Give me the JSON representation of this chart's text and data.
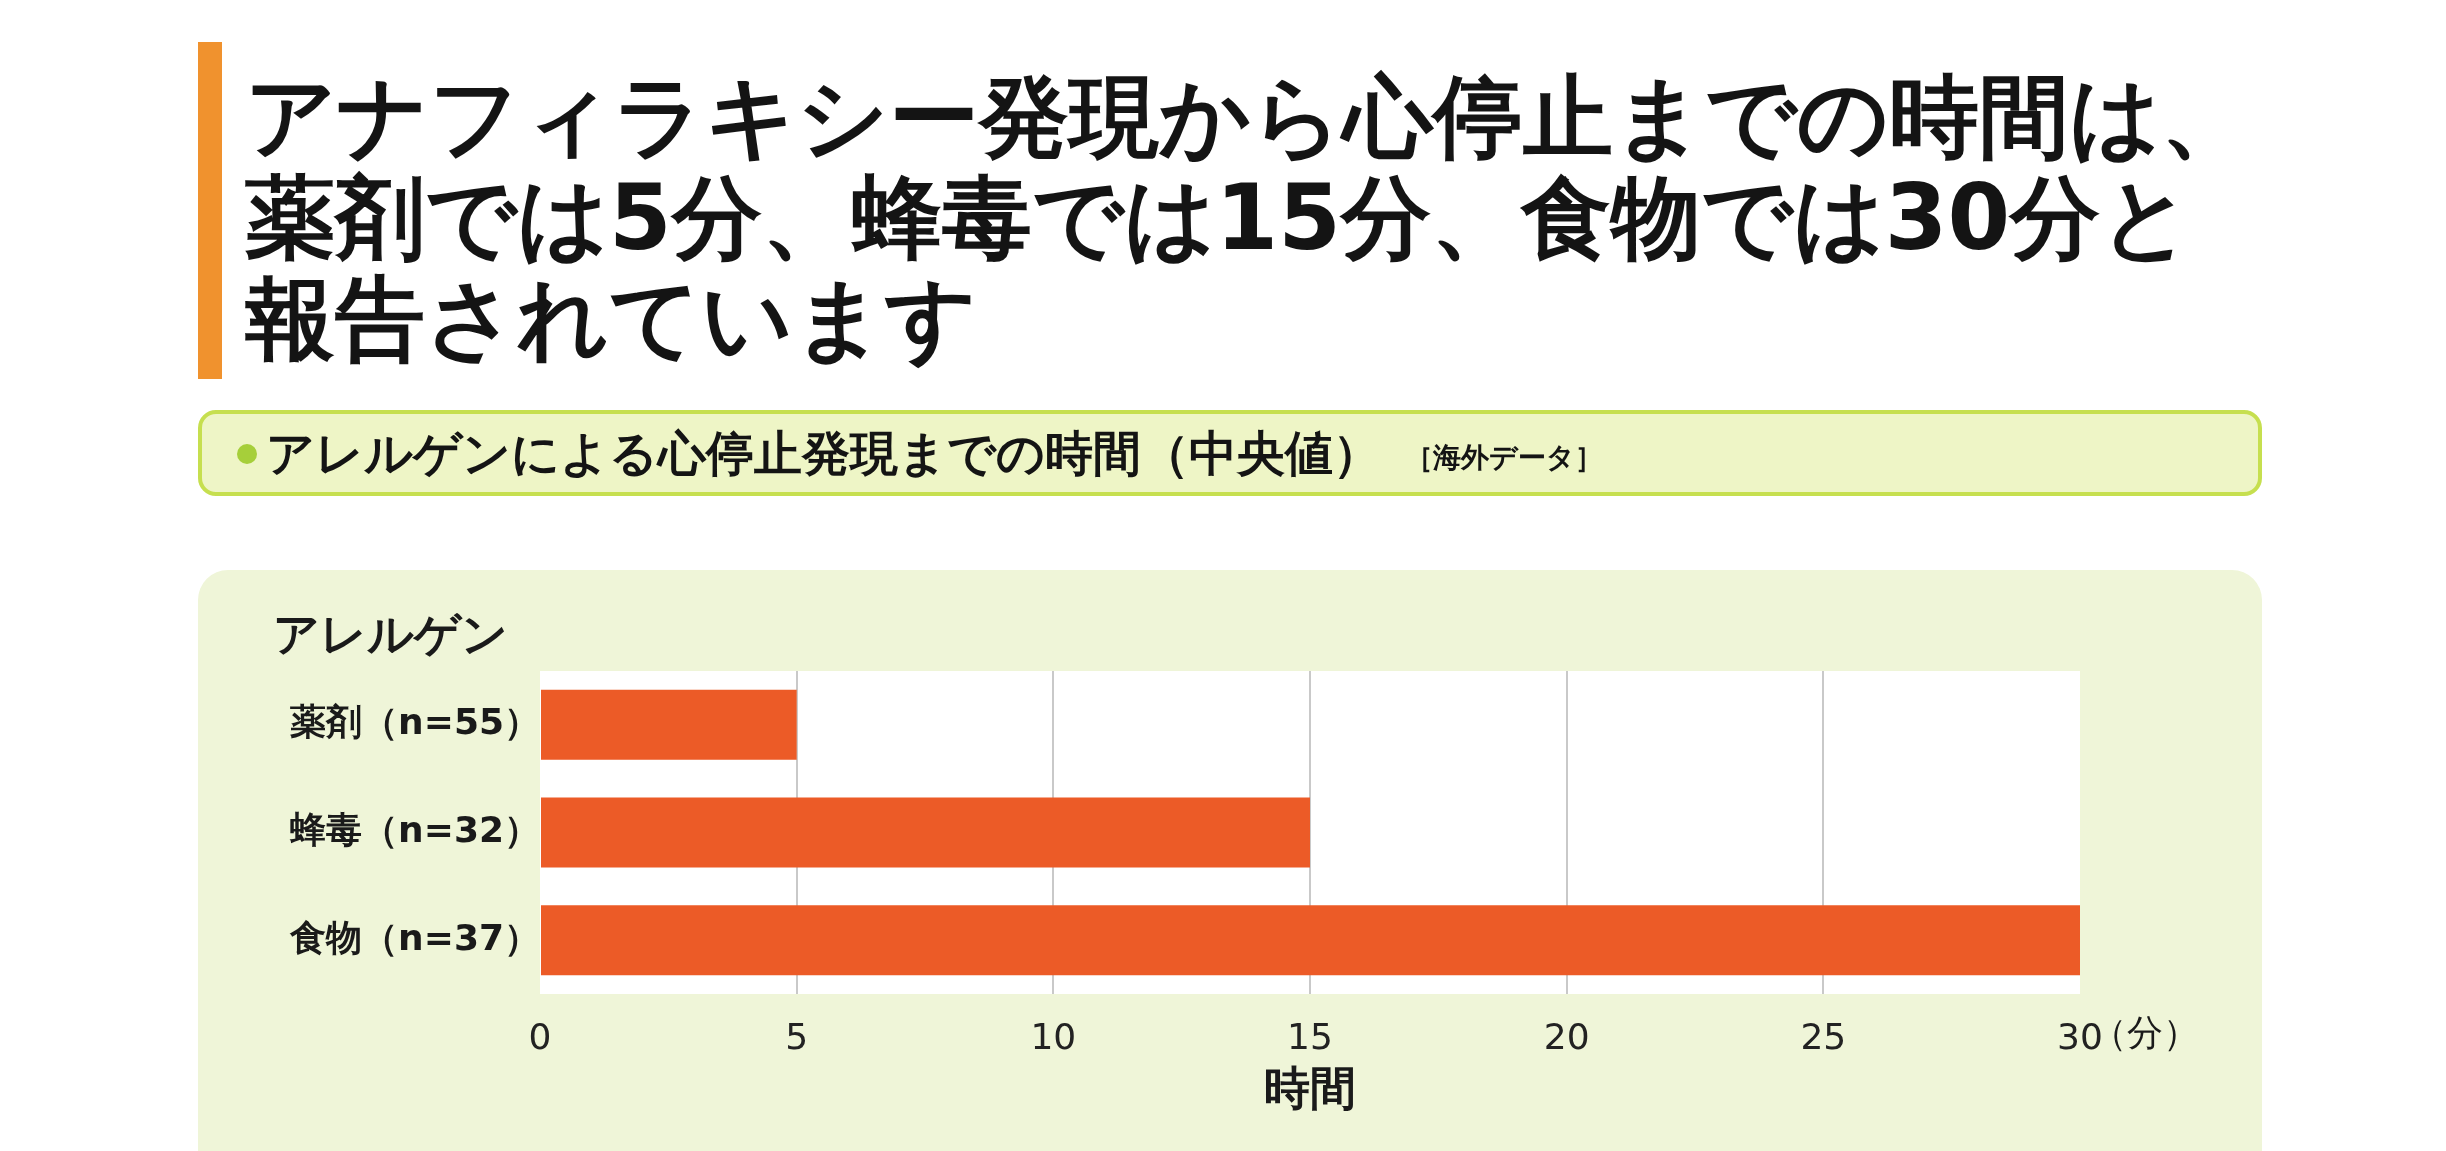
{
  "chart_data": {
    "type": "bar",
    "orientation": "horizontal",
    "title": "アナフィラキシー発現から心停止までの時間は、薬剤では5分、蜂毒では15分、食物では30分と報告されています",
    "subtitle": "アレルゲンによる心停止発現までの時間（中央値）",
    "annotations": [
      "［海外データ］",
      "（分）"
    ],
    "ylabel": "アレルゲン",
    "xlabel": "時間",
    "categories": [
      "薬剤（n=55）",
      "蜂毒（n=32）",
      "食物（n=37）"
    ],
    "values": [
      5,
      15,
      30
    ],
    "color": "#ec5b27",
    "xlim": [
      0,
      30
    ],
    "xticks": [
      0,
      5,
      10,
      15,
      20,
      25,
      30
    ],
    "grid": "x"
  }
}
